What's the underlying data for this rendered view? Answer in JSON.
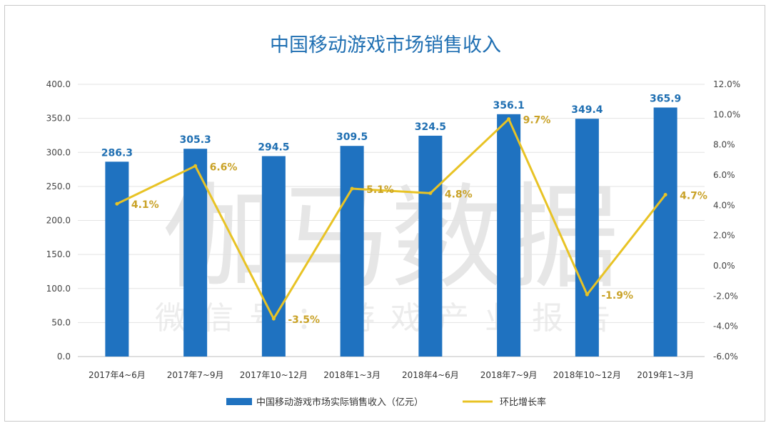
{
  "watermark": {
    "main": "伽马数据",
    "sub": "微信号：游戏产业报告"
  },
  "colors": {
    "bar": "#1f72c0",
    "line": "#e8c325",
    "line_label": "#c9a227",
    "title": "#1f6fb2",
    "grid": "#e3e3e3"
  },
  "chart_data": {
    "type": "bar",
    "title": "中国移动游戏市场销售收入",
    "categories": [
      "2017年4~6月",
      "2017年7~9月",
      "2017年10~12月",
      "2018年1~3月",
      "2018年4~6月",
      "2018年7~9月",
      "2018年10~12月",
      "2019年1~3月"
    ],
    "series": [
      {
        "name": "中国移动游戏市场实际销售收入（亿元）",
        "type": "bar",
        "axis": "left",
        "values": [
          286.3,
          305.3,
          294.5,
          309.5,
          324.5,
          356.1,
          349.4,
          365.9
        ],
        "labels": [
          "286.3",
          "305.3",
          "294.5",
          "309.5",
          "324.5",
          "356.1",
          "349.4",
          "365.9"
        ]
      },
      {
        "name": "环比增长率",
        "type": "line",
        "axis": "right",
        "values": [
          4.1,
          6.6,
          -3.5,
          5.1,
          4.8,
          9.7,
          -1.9,
          4.7
        ],
        "labels": [
          "4.1%",
          "6.6%",
          "-3.5%",
          "5.1%",
          "4.8%",
          "9.7%",
          "-1.9%",
          "4.7%"
        ]
      }
    ],
    "ylim": [
      0,
      400
    ],
    "y_ticks": [
      "0.0",
      "50.0",
      "100.0",
      "150.0",
      "200.0",
      "250.0",
      "300.0",
      "350.0",
      "400.0"
    ],
    "y2lim": [
      -6,
      12
    ],
    "y2_ticks": [
      "-6.0%",
      "-4.0%",
      "-2.0%",
      "0.0%",
      "2.0%",
      "4.0%",
      "6.0%",
      "8.0%",
      "10.0%",
      "12.0%"
    ],
    "grid": true,
    "legend_position": "bottom"
  }
}
